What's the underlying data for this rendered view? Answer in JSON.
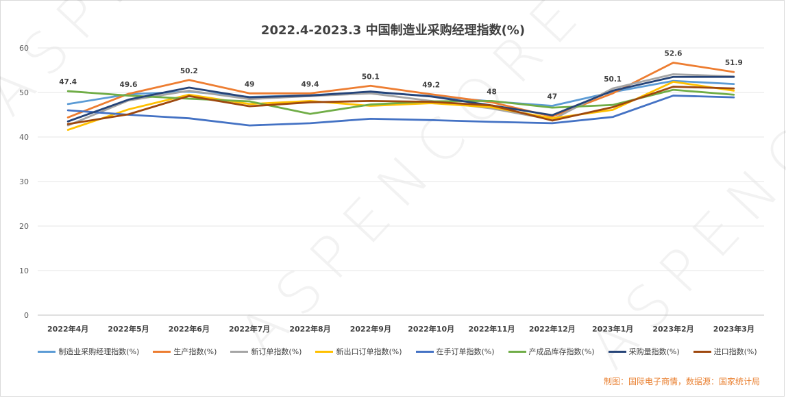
{
  "chart_data": {
    "type": "line",
    "title": "2022.4-2023.3 中国制造业采购经理指数(%)",
    "categories": [
      "2022年4月",
      "2022年5月",
      "2022年6月",
      "2022年7月",
      "2022年8月",
      "2022年9月",
      "2022年10月",
      "2022年11月",
      "2022年12月",
      "2023年1月",
      "2023年2月",
      "2023年3月"
    ],
    "yticks": [
      "0",
      "10",
      "20",
      "30",
      "40",
      "50",
      "60"
    ],
    "ylim": [
      0,
      60
    ],
    "grid": true,
    "legend_position": "bottom",
    "series": [
      {
        "name": "制造业采购经理指数(%)",
        "color": "#5b9bd5",
        "values": [
          47.4,
          49.6,
          50.2,
          49.0,
          49.4,
          50.1,
          49.2,
          48.0,
          47.0,
          50.1,
          52.6,
          51.9
        ]
      },
      {
        "name": "生产指数(%)",
        "color": "#ed7d31",
        "values": [
          44.4,
          49.7,
          52.8,
          49.8,
          49.8,
          51.5,
          49.6,
          47.8,
          44.6,
          49.8,
          56.7,
          54.6
        ]
      },
      {
        "name": "新订单指数(%)",
        "color": "#a5a5a5",
        "values": [
          42.6,
          48.2,
          50.4,
          48.5,
          49.2,
          49.8,
          48.1,
          46.4,
          43.9,
          50.9,
          54.1,
          53.6
        ]
      },
      {
        "name": "新出口订单指数(%)",
        "color": "#ffc000",
        "values": [
          41.6,
          46.2,
          49.5,
          47.4,
          48.1,
          47.0,
          47.6,
          46.7,
          44.2,
          46.1,
          52.4,
          50.4
        ]
      },
      {
        "name": "在手订单指数(%)",
        "color": "#4472c4",
        "values": [
          46.0,
          45.0,
          44.2,
          42.6,
          43.1,
          44.1,
          43.8,
          43.4,
          43.1,
          44.5,
          49.3,
          48.9
        ]
      },
      {
        "name": "产成品库存指数(%)",
        "color": "#70ad47",
        "values": [
          50.3,
          49.3,
          48.6,
          48.0,
          45.2,
          47.3,
          48.0,
          48.1,
          46.6,
          47.2,
          50.6,
          49.5
        ]
      },
      {
        "name": "采购量指数(%)",
        "color": "#264478",
        "values": [
          43.5,
          48.4,
          51.1,
          48.9,
          49.3,
          50.2,
          49.1,
          47.1,
          44.9,
          50.4,
          53.5,
          53.5
        ]
      },
      {
        "name": "进口指数(%)",
        "color": "#9e480e",
        "values": [
          42.9,
          45.1,
          49.2,
          46.9,
          47.8,
          48.1,
          47.9,
          47.1,
          43.7,
          46.7,
          51.3,
          50.9
        ]
      }
    ],
    "data_labels": [
      "47.4",
      "49.6",
      "50.2",
      "49",
      "49.4",
      "50.1",
      "49.2",
      "48",
      "47",
      "50.1",
      "52.6",
      "51.9"
    ]
  },
  "source_text": "制图：国际电子商情，数据源：国家统计局",
  "watermark": "ASPENCORE"
}
